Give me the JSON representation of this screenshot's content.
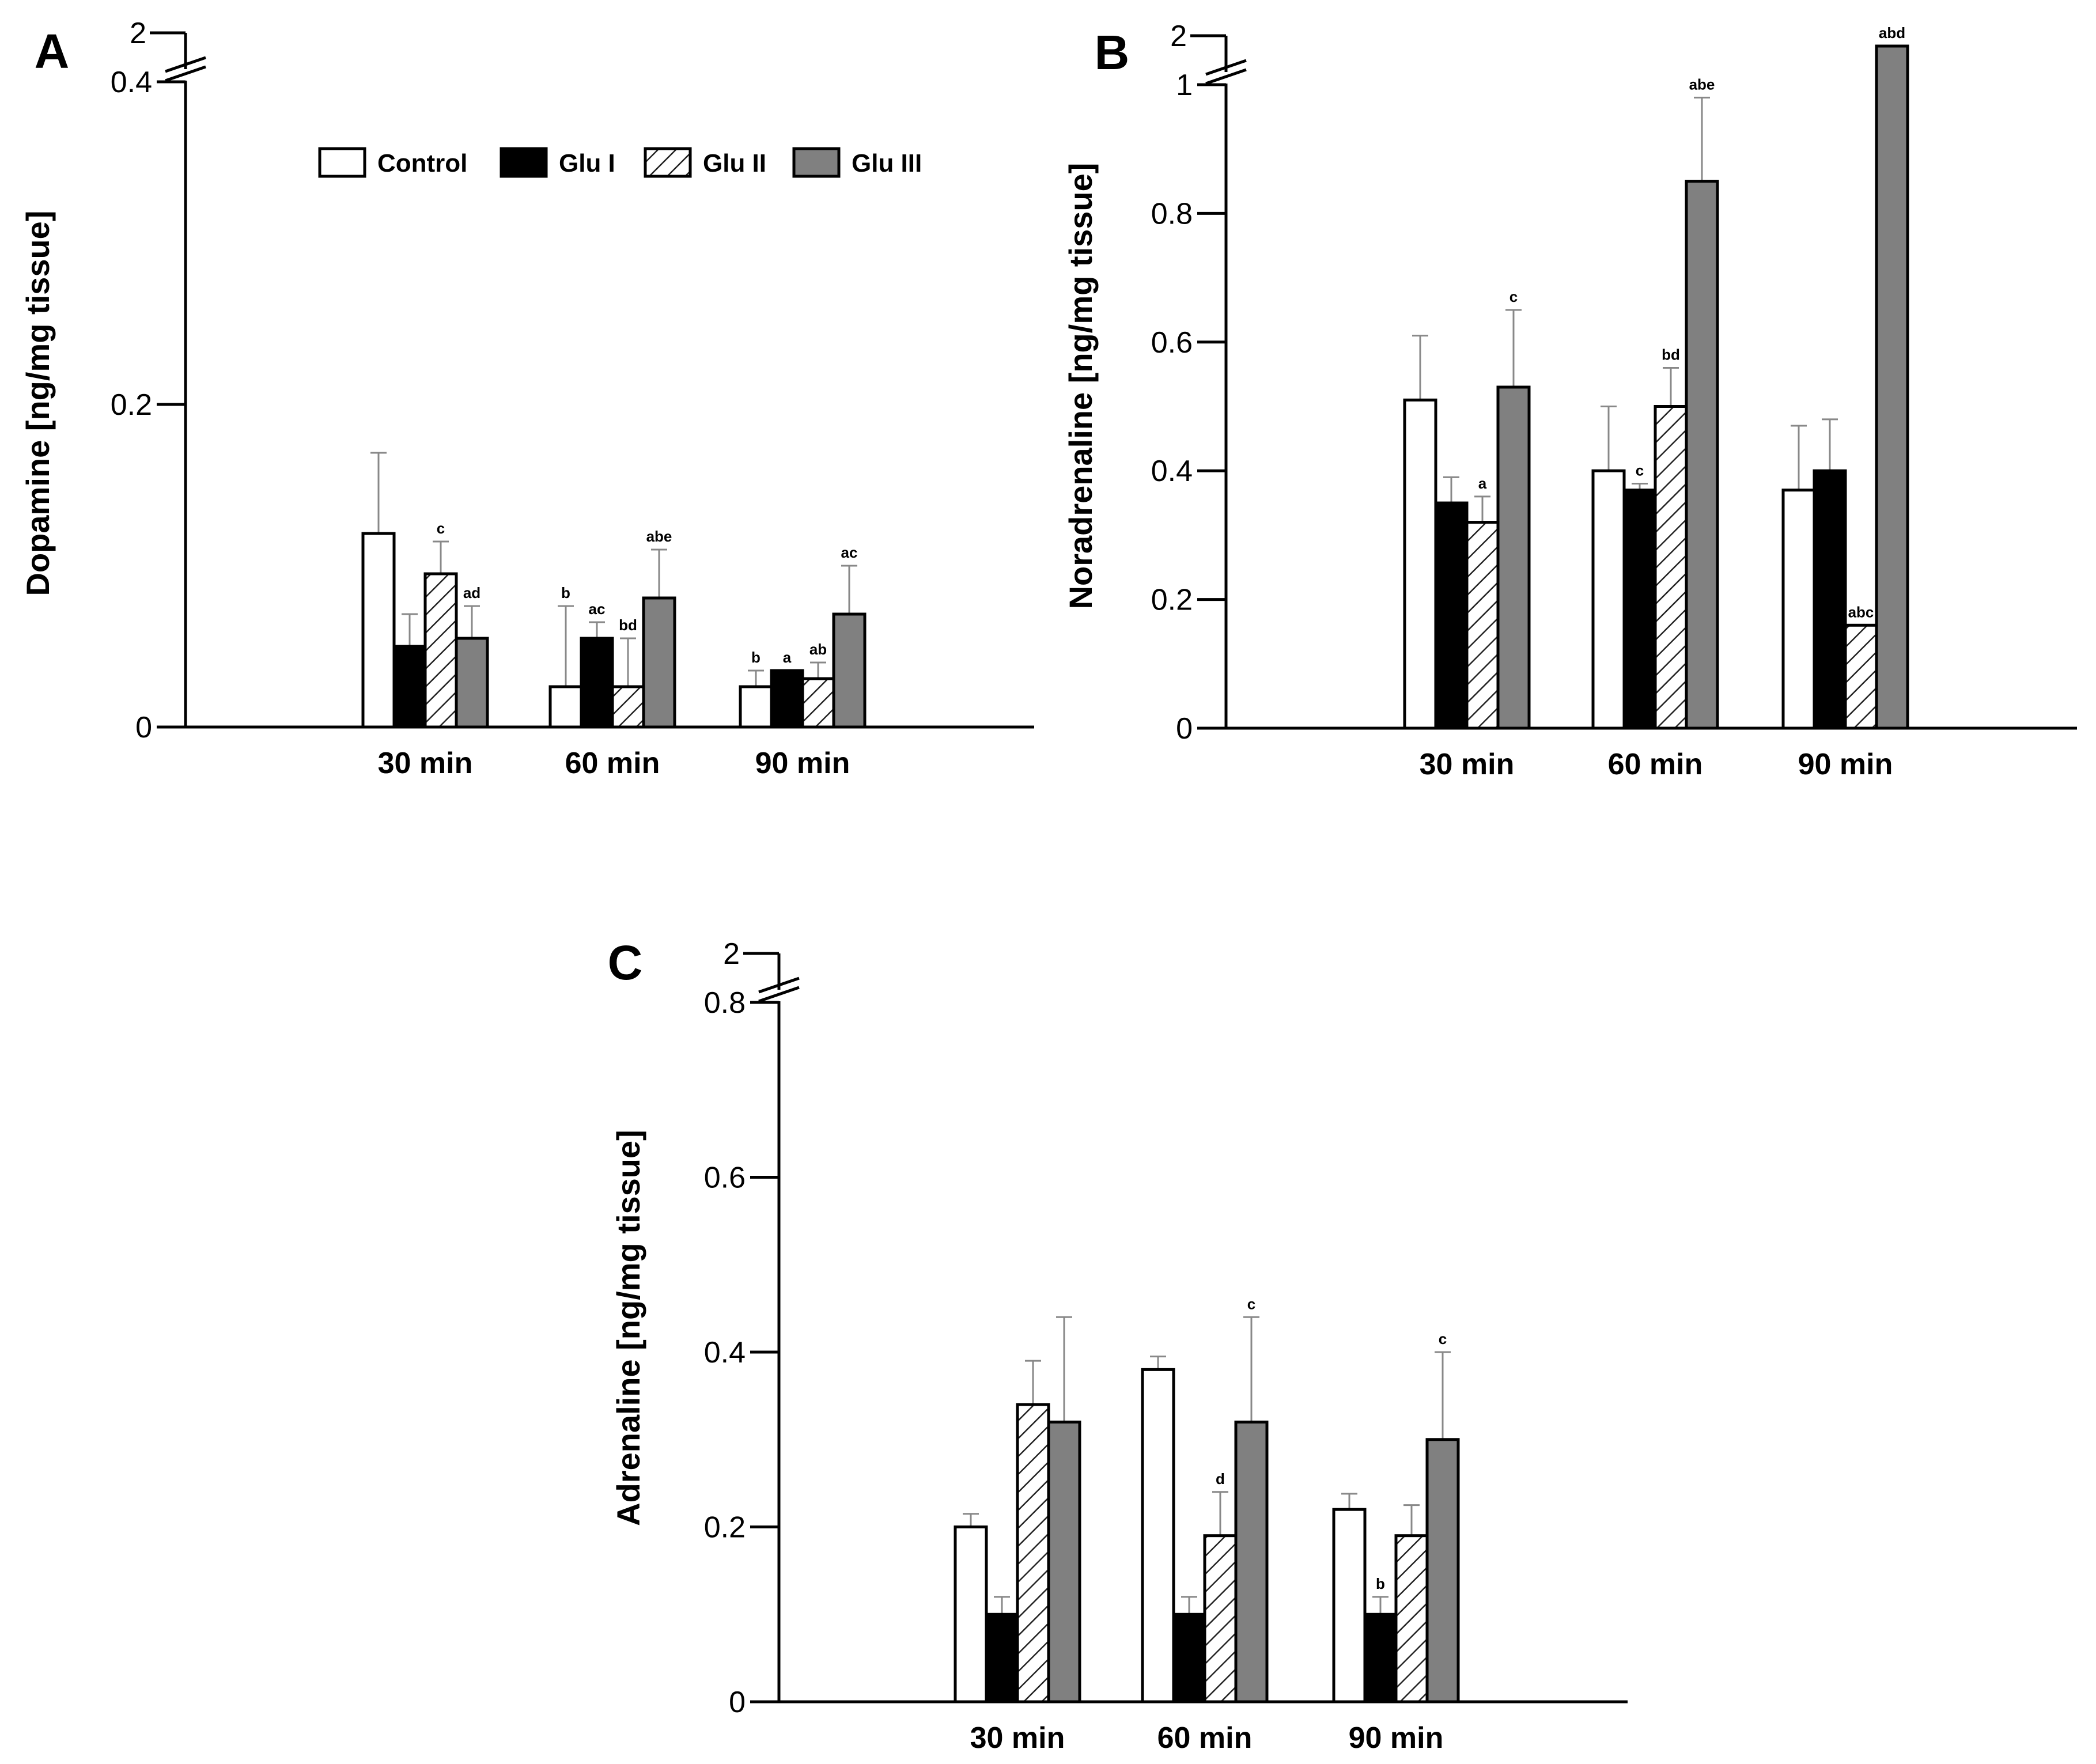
{
  "legend": [
    {
      "label": "Control",
      "fill": "#ffffff",
      "pattern": "none"
    },
    {
      "label": "Glu I",
      "fill": "#000000",
      "pattern": "none"
    },
    {
      "label": "Glu II",
      "fill": "#ffffff",
      "pattern": "hatch"
    },
    {
      "label": "Glu III",
      "fill": "#808080",
      "pattern": "none"
    }
  ],
  "chart_data": [
    {
      "panel": "A",
      "type": "bar",
      "ylabel": "Dopamine [ng/mg tissue]",
      "categories": [
        "30 min",
        "60 min",
        "90 min"
      ],
      "ylim": [
        0,
        0.4
      ],
      "axis_break": {
        "upper_label": "2"
      },
      "yticks": [
        {
          "value": 0,
          "label": "0"
        },
        {
          "value": 0.2,
          "label": "0.2"
        },
        {
          "value": 0.4,
          "label": "0.4"
        }
      ],
      "series": [
        {
          "name": "Control",
          "values": [
            0.12,
            0.025,
            0.025
          ],
          "errors": [
            0.05,
            0.05,
            0.01
          ],
          "labels": [
            "",
            "b",
            "b"
          ]
        },
        {
          "name": "Glu I",
          "values": [
            0.05,
            0.055,
            0.035
          ],
          "errors": [
            0.02,
            0.01,
            0.0
          ],
          "labels": [
            "",
            "ac",
            "a"
          ]
        },
        {
          "name": "Glu II",
          "values": [
            0.095,
            0.025,
            0.03
          ],
          "errors": [
            0.02,
            0.03,
            0.01
          ],
          "labels": [
            "c",
            "bd",
            "ab"
          ]
        },
        {
          "name": "Glu III",
          "values": [
            0.055,
            0.08,
            0.07
          ],
          "errors": [
            0.02,
            0.03,
            0.03
          ],
          "labels": [
            "ad",
            "abe",
            "ac"
          ]
        }
      ]
    },
    {
      "panel": "B",
      "type": "bar",
      "ylabel": "Noradrenaline [ng/mg tissue]",
      "categories": [
        "30 min",
        "60 min",
        "90 min"
      ],
      "ylim": [
        0,
        1.0
      ],
      "axis_break": {
        "upper_label": "2"
      },
      "yticks": [
        {
          "value": 0,
          "label": "0"
        },
        {
          "value": 0.2,
          "label": "0.2"
        },
        {
          "value": 0.4,
          "label": "0.4"
        },
        {
          "value": 0.6,
          "label": "0.6"
        },
        {
          "value": 0.8,
          "label": "0.8"
        },
        {
          "value": 1.0,
          "label": "1"
        }
      ],
      "series": [
        {
          "name": "Control",
          "values": [
            0.51,
            0.4,
            0.37
          ],
          "errors": [
            0.1,
            0.1,
            0.1
          ],
          "labels": [
            "",
            "",
            ""
          ]
        },
        {
          "name": "Glu I",
          "values": [
            0.35,
            0.37,
            0.4
          ],
          "errors": [
            0.04,
            0.01,
            0.08
          ],
          "labels": [
            "",
            "c",
            ""
          ]
        },
        {
          "name": "Glu II",
          "values": [
            0.32,
            0.5,
            0.16
          ],
          "errors": [
            0.04,
            0.06,
            0.0
          ],
          "labels": [
            "a",
            "bd",
            "abc"
          ]
        },
        {
          "name": "Glu III",
          "values": [
            0.53,
            0.85,
            1.06
          ],
          "errors": [
            0.12,
            0.13,
            0.0
          ],
          "labels": [
            "c",
            "abe",
            "abd"
          ]
        }
      ]
    },
    {
      "panel": "C",
      "type": "bar",
      "ylabel": "Adrenaline [ng/mg tissue]",
      "categories": [
        "30 min",
        "60 min",
        "90 min"
      ],
      "ylim": [
        0,
        0.8
      ],
      "axis_break": {
        "upper_label": "2"
      },
      "yticks": [
        {
          "value": 0,
          "label": "0"
        },
        {
          "value": 0.2,
          "label": "0.2"
        },
        {
          "value": 0.4,
          "label": "0.4"
        },
        {
          "value": 0.6,
          "label": "0.6"
        },
        {
          "value": 0.8,
          "label": "0.8"
        }
      ],
      "series": [
        {
          "name": "Control",
          "values": [
            0.2,
            0.38,
            0.22
          ],
          "errors": [
            0.015,
            0.015,
            0.018
          ],
          "labels": [
            "",
            "",
            ""
          ]
        },
        {
          "name": "Glu I",
          "values": [
            0.1,
            0.1,
            0.1
          ],
          "errors": [
            0.02,
            0.02,
            0.02
          ],
          "labels": [
            "",
            "",
            "b"
          ]
        },
        {
          "name": "Glu II",
          "values": [
            0.34,
            0.19,
            0.19
          ],
          "errors": [
            0.05,
            0.05,
            0.035
          ],
          "labels": [
            "",
            "d",
            ""
          ]
        },
        {
          "name": "Glu III",
          "values": [
            0.32,
            0.32,
            0.3
          ],
          "errors": [
            0.12,
            0.12,
            0.1
          ],
          "labels": [
            "",
            "c",
            "c"
          ]
        }
      ]
    }
  ]
}
